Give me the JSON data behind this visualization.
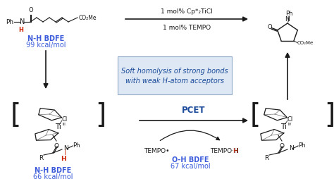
{
  "bg_color": "#ffffff",
  "fig_width": 4.74,
  "fig_height": 2.55,
  "blue_color": "#3b5bdb",
  "red_color": "#cc2200",
  "black_color": "#1a1a1a",
  "box_bg": "#dde8f4",
  "box_edge": "#90aac8",
  "box_text_color": "#1a4a99",
  "pcet_color": "#1a4a99",
  "top_arrow_text1": "1 mol% Cp*₂TiCl",
  "top_arrow_text2": "1 mol% TEMPO",
  "box_line1": "Soft homolysis of strong bonds",
  "box_line2": "with weak H-atom acceptors",
  "pcet_label": "PCET",
  "nh_bdfe_top_l1": "N-H BDFE",
  "nh_bdfe_top_l2": "99 kcal/mol",
  "nh_bdfe_bot_l1": "N-H BDFE",
  "nh_bdfe_bot_l2": "66 kcal/mol",
  "oh_bdfe_l1": "O-H BDFE",
  "oh_bdfe_l2": "67 kcal/mol"
}
